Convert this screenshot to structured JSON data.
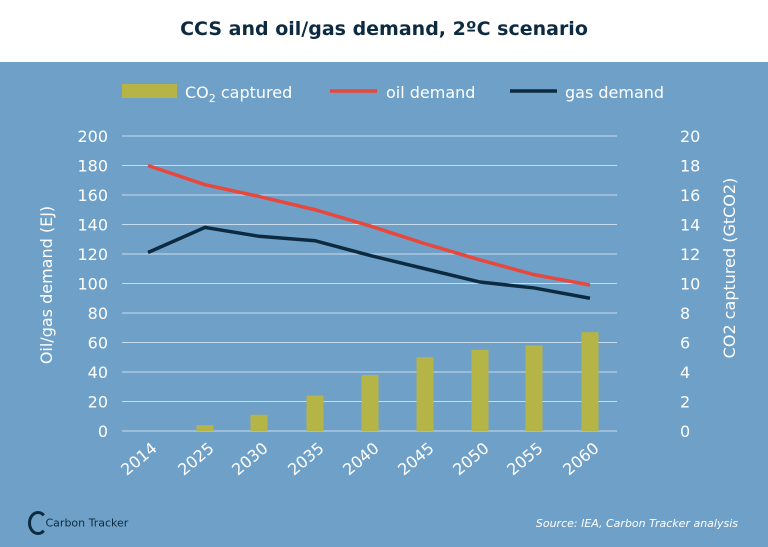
{
  "chart_data": {
    "type": "bar+line",
    "title": "CCS and oil/gas demand, 2ºC scenario",
    "categories": [
      "2014",
      "2025",
      "2030",
      "2035",
      "2040",
      "2045",
      "2050",
      "2055",
      "2060"
    ],
    "series": [
      {
        "name": "CO2 captured",
        "label_main": "CO",
        "label_sub": "2",
        "label_rest": " captured",
        "type": "bar",
        "axis": "right",
        "color": "#b5b547",
        "values": [
          0,
          0.4,
          1.1,
          2.4,
          3.8,
          5.0,
          5.5,
          5.8,
          6.7
        ]
      },
      {
        "name": "oil demand",
        "type": "line",
        "axis": "left",
        "color": "#e8473c",
        "values": [
          180,
          167,
          159,
          150,
          139,
          127,
          116,
          106,
          99
        ]
      },
      {
        "name": "gas demand",
        "type": "line",
        "axis": "left",
        "color": "#0d2b40",
        "values": [
          121,
          138,
          132,
          129,
          119,
          110,
          101,
          97,
          90
        ]
      }
    ],
    "ylabel_left": "Oil/gas demand (EJ)",
    "ylabel_right": "CO2 captured (GtCO2)",
    "ylim_left": [
      0,
      200
    ],
    "ylim_right": [
      0,
      20
    ],
    "yticks_left": [
      "0",
      "20",
      "40",
      "60",
      "80",
      "100",
      "120",
      "140",
      "160",
      "180",
      "200"
    ],
    "yticks_right": [
      "0",
      "2",
      "4",
      "6",
      "8",
      "10",
      "12",
      "14",
      "16",
      "18",
      "20"
    ],
    "grid": true,
    "legend_position": "top"
  },
  "footer": {
    "source": "Source: IEA, Carbon Tracker analysis",
    "logo": "Carbon Tracker"
  },
  "colors": {
    "background": "#6fa0c8",
    "grid": "#c9dcec"
  }
}
